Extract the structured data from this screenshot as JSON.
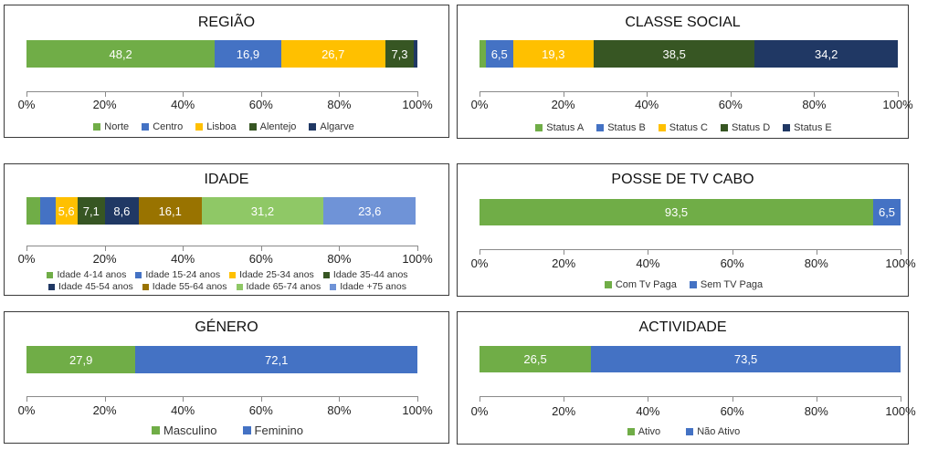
{
  "colors": {
    "green": "#70ad47",
    "blue": "#4472c4",
    "yellow": "#ffc000",
    "darkgreen": "#375623",
    "navy": "#203864",
    "brown": "#997300",
    "lightgreen": "#8fc866",
    "lightblue": "#6f93d7"
  },
  "chart_data": [
    {
      "id": "regiao",
      "type": "bar",
      "orientation": "horizontal-stacked",
      "title": "REGIÃO",
      "xlim": [
        0,
        100
      ],
      "ticks": [
        "0%",
        "20%",
        "40%",
        "60%",
        "80%",
        "100%"
      ],
      "series": [
        {
          "name": "Norte",
          "value": 48.2,
          "label": "48,2",
          "color": "#70ad47"
        },
        {
          "name": "Centro",
          "value": 16.9,
          "label": "16,9",
          "color": "#4472c4"
        },
        {
          "name": "Lisboa",
          "value": 26.7,
          "label": "26,7",
          "color": "#ffc000"
        },
        {
          "name": "Alentejo",
          "value": 7.3,
          "label": "7,3",
          "color": "#375623"
        },
        {
          "name": "Algarve",
          "value": 0.9,
          "label": "",
          "color": "#203864"
        }
      ]
    },
    {
      "id": "classe",
      "type": "bar",
      "orientation": "horizontal-stacked",
      "title": "CLASSE SOCIAL",
      "xlim": [
        0,
        100
      ],
      "ticks": [
        "0%",
        "20%",
        "40%",
        "60%",
        "80%",
        "100%"
      ],
      "series": [
        {
          "name": "Status A",
          "value": 1.5,
          "label": "",
          "color": "#70ad47"
        },
        {
          "name": "Status B",
          "value": 6.5,
          "label": "6,5",
          "color": "#4472c4"
        },
        {
          "name": "Status C",
          "value": 19.3,
          "label": "19,3",
          "color": "#ffc000"
        },
        {
          "name": "Status D",
          "value": 38.5,
          "label": "38,5",
          "color": "#375623"
        },
        {
          "name": "Status E",
          "value": 34.2,
          "label": "34,2",
          "color": "#203864"
        }
      ]
    },
    {
      "id": "idade",
      "type": "bar",
      "orientation": "horizontal-stacked",
      "title": "IDADE",
      "xlim": [
        0,
        100
      ],
      "ticks": [
        "0%",
        "20%",
        "40%",
        "60%",
        "80%",
        "100%"
      ],
      "series": [
        {
          "name": "Idade 4-14 anos",
          "value": 3.5,
          "label": "",
          "color": "#70ad47"
        },
        {
          "name": "Idade 15-24 anos",
          "value": 3.9,
          "label": "",
          "color": "#4472c4"
        },
        {
          "name": "Idade 25-34 anos",
          "value": 5.6,
          "label": "5,6",
          "color": "#ffc000"
        },
        {
          "name": "Idade 35-44 anos",
          "value": 7.1,
          "label": "7,1",
          "color": "#375623"
        },
        {
          "name": "Idade 45-54 anos",
          "value": 8.6,
          "label": "8,6",
          "color": "#203864"
        },
        {
          "name": "Idade 55-64 anos",
          "value": 16.1,
          "label": "16,1",
          "color": "#997300"
        },
        {
          "name": "Idade 65-74 anos",
          "value": 31.2,
          "label": "31,2",
          "color": "#8fc866"
        },
        {
          "name": "Idade +75 anos",
          "value": 23.6,
          "label": "23,6",
          "color": "#6f93d7"
        }
      ]
    },
    {
      "id": "tvcabo",
      "type": "bar",
      "orientation": "horizontal-stacked",
      "title": "POSSE DE TV CABO",
      "xlim": [
        0,
        100
      ],
      "ticks": [
        "0%",
        "20%",
        "40%",
        "60%",
        "80%",
        "100%"
      ],
      "series": [
        {
          "name": "Com Tv Paga",
          "value": 93.5,
          "label": "93,5",
          "color": "#70ad47"
        },
        {
          "name": "Sem TV Paga",
          "value": 6.5,
          "label": "6,5",
          "color": "#4472c4"
        }
      ]
    },
    {
      "id": "genero",
      "type": "bar",
      "orientation": "horizontal-stacked",
      "title": "GÉNERO",
      "xlim": [
        0,
        100
      ],
      "ticks": [
        "0%",
        "20%",
        "40%",
        "60%",
        "80%",
        "100%"
      ],
      "series": [
        {
          "name": "Masculino",
          "value": 27.9,
          "label": "27,9",
          "color": "#70ad47"
        },
        {
          "name": "Feminino",
          "value": 72.1,
          "label": "72,1",
          "color": "#4472c4"
        }
      ]
    },
    {
      "id": "actividade",
      "type": "bar",
      "orientation": "horizontal-stacked",
      "title": "ACTIVIDADE",
      "xlim": [
        0,
        100
      ],
      "ticks": [
        "0%",
        "20%",
        "40%",
        "60%",
        "80%",
        "100%"
      ],
      "series": [
        {
          "name": "Ativo",
          "value": 26.5,
          "label": "26,5",
          "color": "#70ad47"
        },
        {
          "name": "Não Ativo",
          "value": 73.5,
          "label": "73,5",
          "color": "#4472c4"
        }
      ]
    }
  ]
}
